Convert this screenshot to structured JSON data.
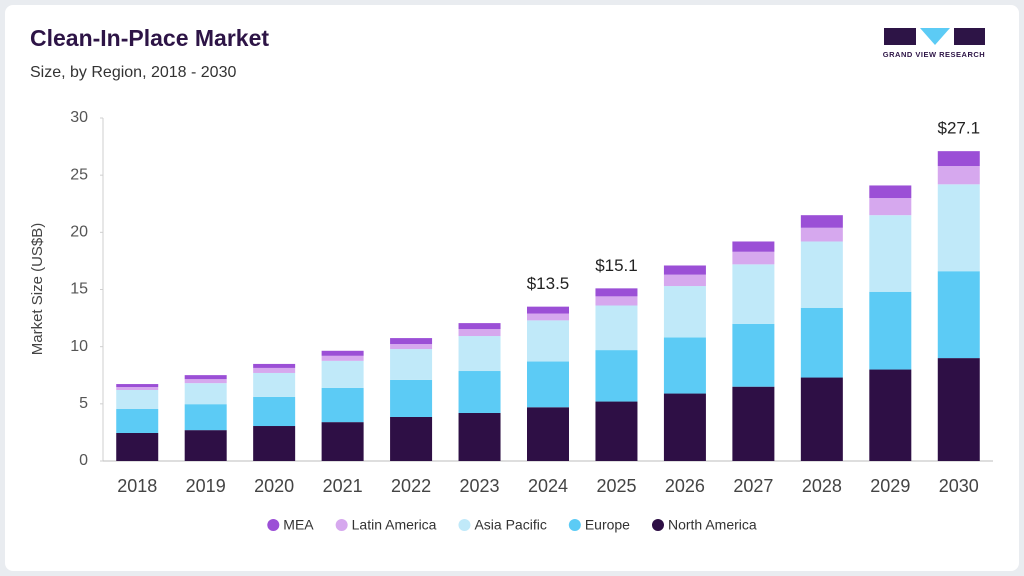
{
  "chart_data": {
    "type": "stacked-bar",
    "title": "Clean-In-Place Market",
    "subtitle": "Size, by Region, 2018 - 2030",
    "y_label": "Market Size (US$B)",
    "logo_text": "GRAND VIEW RESEARCH",
    "categories": [
      "2018",
      "2019",
      "2020",
      "2021",
      "2022",
      "2023",
      "2024",
      "2025",
      "2026",
      "2027",
      "2028",
      "2029",
      "2030"
    ],
    "series": [
      {
        "name": "MEA",
        "color": "#9b4fd6",
        "values": [
          0.26,
          0.35,
          0.35,
          0.44,
          0.52,
          0.52,
          0.6,
          0.7,
          0.8,
          0.9,
          1.1,
          1.1,
          1.3
        ]
      },
      {
        "name": "Latin America",
        "color": "#d6a8ee",
        "values": [
          0.26,
          0.35,
          0.44,
          0.44,
          0.44,
          0.61,
          0.6,
          0.8,
          1.0,
          1.1,
          1.2,
          1.5,
          1.6
        ]
      },
      {
        "name": "Asia Pacific",
        "color": "#c0e9f9",
        "values": [
          1.66,
          1.84,
          2.1,
          2.36,
          2.7,
          3.06,
          3.6,
          3.9,
          4.5,
          5.2,
          5.8,
          6.7,
          7.6
        ]
      },
      {
        "name": "Europe",
        "color": "#5ccbf5",
        "values": [
          2.1,
          2.27,
          2.54,
          3.0,
          3.24,
          3.67,
          4.0,
          4.5,
          4.9,
          5.5,
          6.1,
          6.8,
          7.6
        ]
      },
      {
        "name": "North America",
        "color": "#2e0f45",
        "values": [
          2.45,
          2.7,
          3.06,
          3.4,
          3.85,
          4.2,
          4.7,
          5.2,
          5.9,
          6.5,
          7.3,
          8.0,
          9.0
        ]
      }
    ],
    "totals": {
      "values": [
        null,
        null,
        null,
        null,
        null,
        null,
        13.5,
        15.1,
        null,
        null,
        null,
        null,
        27.1
      ],
      "value_labels": [
        null,
        null,
        null,
        null,
        null,
        null,
        "$13.5",
        "$15.1",
        null,
        null,
        null,
        null,
        "$27.1"
      ]
    },
    "ylim": [
      0,
      30
    ],
    "yticks": [
      0,
      5,
      10,
      15,
      20,
      25,
      30
    ],
    "grid": false,
    "legend": "bottom"
  }
}
